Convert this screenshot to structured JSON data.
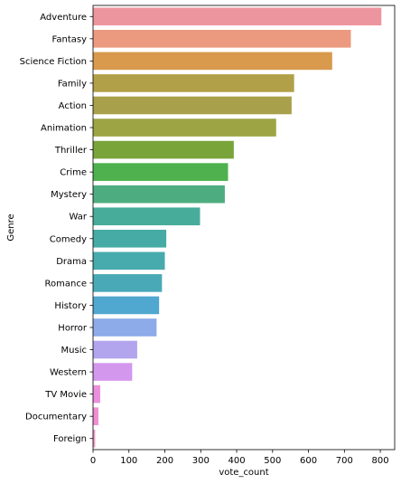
{
  "chart_data": {
    "type": "bar",
    "orientation": "horizontal",
    "categories": [
      "Adventure",
      "Fantasy",
      "Science Fiction",
      "Family",
      "Action",
      "Animation",
      "Thriller",
      "Crime",
      "Mystery",
      "War",
      "Comedy",
      "Drama",
      "Romance",
      "History",
      "Horror",
      "Music",
      "Western",
      "TV Movie",
      "Documentary",
      "Foreign"
    ],
    "values": [
      803,
      718,
      666,
      560,
      553,
      510,
      392,
      376,
      367,
      298,
      204,
      200,
      192,
      184,
      177,
      123,
      109,
      20,
      15,
      6
    ],
    "colors": [
      "#ed959f",
      "#eb9a80",
      "#d99a4e",
      "#b2a048",
      "#a8a04a",
      "#9da444",
      "#79a43a",
      "#4eb14d",
      "#4ead80",
      "#47ac9a",
      "#45aba4",
      "#47aaad",
      "#4aa9b7",
      "#50a7cf",
      "#8dabe8",
      "#b3a4ee",
      "#d497ee",
      "#ea8ede",
      "#ef8fd0",
      "#f099c6"
    ],
    "xlabel": "vote_count",
    "ylabel": "Genre",
    "xlim": [
      0,
      840
    ],
    "xticks": [
      0,
      100,
      200,
      300,
      400,
      500,
      600,
      700,
      800
    ],
    "grid": false,
    "legend": "none"
  }
}
